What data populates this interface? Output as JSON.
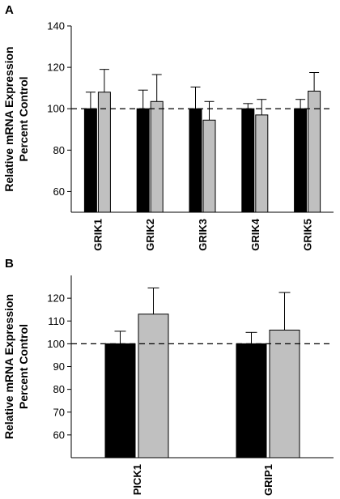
{
  "figure": {
    "panels": [
      "A",
      "B"
    ]
  },
  "colors": {
    "series_1": "#000000",
    "series_2": "#c0c0c0",
    "axis": "#000000",
    "reference": "#000000"
  },
  "chart_data": [
    {
      "type": "bar",
      "panel": "A",
      "title": "",
      "ylabel": "Relative mRNA Expression",
      "ylabel2": "Percent Control",
      "categories": [
        "GRIK1",
        "GRIK2",
        "GRIK3",
        "GRIK4",
        "GRIK5"
      ],
      "series": [
        {
          "values": [
            100,
            100,
            100,
            100,
            100
          ],
          "errors": [
            8,
            9,
            10.5,
            2.5,
            4.5
          ]
        },
        {
          "values": [
            108,
            103.5,
            94.5,
            97,
            108.5
          ],
          "errors": [
            11,
            13,
            9,
            7.5,
            9
          ]
        }
      ],
      "reference_line": 100,
      "ylim": [
        50,
        140
      ],
      "yticks": [
        60,
        80,
        100,
        120,
        140
      ],
      "grid": false
    },
    {
      "type": "bar",
      "panel": "B",
      "title": "",
      "ylabel": "Relative mRNA Expression",
      "ylabel2": "Percent Control",
      "categories": [
        "PICK1",
        "GRIP1"
      ],
      "series": [
        {
          "values": [
            100,
            100
          ],
          "errors": [
            5.5,
            5
          ]
        },
        {
          "values": [
            113,
            106
          ],
          "errors": [
            11.5,
            16.5
          ]
        }
      ],
      "reference_line": 100,
      "ylim": [
        50,
        130
      ],
      "yticks": [
        60,
        70,
        80,
        90,
        100,
        110,
        120
      ],
      "grid": false
    }
  ]
}
